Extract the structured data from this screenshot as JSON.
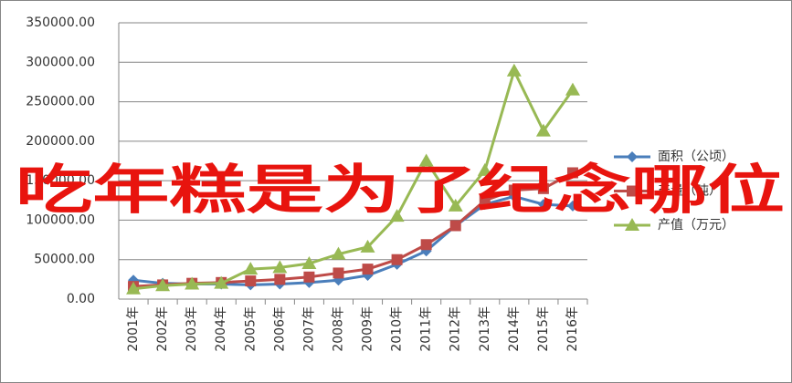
{
  "chart_data": {
    "type": "line",
    "categories": [
      "2001年",
      "2002年",
      "2003年",
      "2004年",
      "2005年",
      "2006年",
      "2007年",
      "2008年",
      "2009年",
      "2010年",
      "2011年",
      "2012年",
      "2013年",
      "2014年",
      "2015年",
      "2016年"
    ],
    "series": [
      {
        "name": "面积（公顷）",
        "color": "#4a7ebb",
        "marker": "diamond",
        "values": [
          24000,
          20000,
          19000,
          19000,
          18000,
          19000,
          21000,
          24000,
          30000,
          44000,
          61000,
          93000,
          120000,
          130000,
          120000,
          118000
        ]
      },
      {
        "name": "产量（吨）",
        "color": "#be4b48",
        "marker": "square",
        "values": [
          16000,
          18000,
          20000,
          21000,
          23000,
          25000,
          28000,
          33000,
          38000,
          50000,
          69000,
          93000,
          125000,
          138000,
          140000,
          160000
        ]
      },
      {
        "name": "产值（万元）",
        "color": "#98b954",
        "marker": "triangle",
        "values": [
          13000,
          17000,
          19000,
          20000,
          38000,
          40000,
          45000,
          57000,
          66000,
          105000,
          175000,
          118000,
          163000,
          289000,
          213000,
          265000
        ]
      }
    ],
    "ylim": [
      0,
      350000
    ],
    "yticks": [
      {
        "value": 0,
        "label": "0.00"
      },
      {
        "value": 50000,
        "label": "50000.00"
      },
      {
        "value": 100000,
        "label": "100000.00"
      },
      {
        "value": 150000,
        "label": "150000.00"
      },
      {
        "value": 200000,
        "label": "200000.00"
      },
      {
        "value": 250000,
        "label": "250000.00"
      },
      {
        "value": 300000,
        "label": "300000.00"
      },
      {
        "value": 350000,
        "label": "350000.00"
      }
    ],
    "grid": true,
    "legend": "right",
    "overlay_text": "吃年糕是为了纪念哪位"
  }
}
